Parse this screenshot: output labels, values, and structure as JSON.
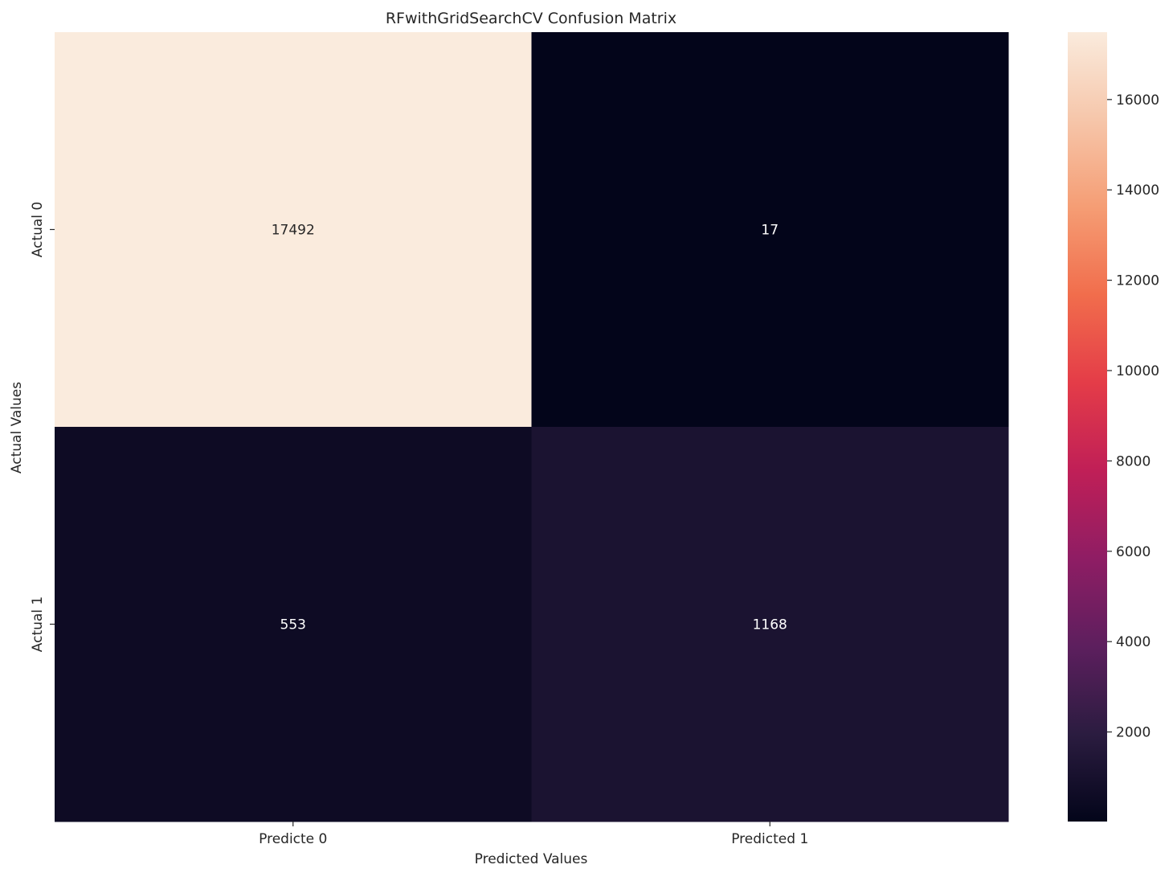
{
  "chart_data": {
    "type": "heatmap",
    "title": "RFwithGridSearchCV Confusion Matrix",
    "xlabel": "Predicted Values",
    "ylabel": "Actual Values",
    "x_categories": [
      "Predicte 0",
      "Predicted 1"
    ],
    "y_categories": [
      "Actual 0",
      "Actual 1"
    ],
    "values": [
      [
        17492,
        17
      ],
      [
        553,
        1168
      ]
    ],
    "colorbar": {
      "min": 17,
      "max": 17492,
      "ticks": [
        2000,
        4000,
        6000,
        8000,
        10000,
        12000,
        14000,
        16000
      ],
      "colormap": "rocket"
    },
    "colors": {
      "stops": [
        "#03051a",
        "#2b1c40",
        "#5d1f5e",
        "#8f1d64",
        "#c01f57",
        "#e43c48",
        "#f16d4c",
        "#f59d74",
        "#f6c6aa",
        "#faebdd"
      ],
      "text_light": "#ffffff",
      "text_dark": "#262626"
    }
  }
}
